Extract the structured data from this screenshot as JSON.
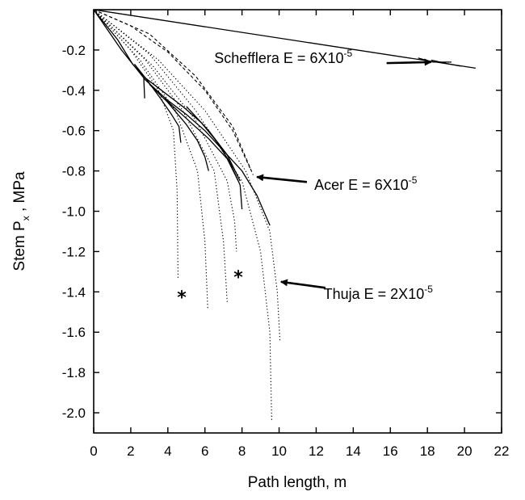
{
  "chart_data": {
    "type": "line",
    "title": "",
    "xlabel": "Path length, m",
    "ylabel_main": "Stem P",
    "ylabel_sub": "x",
    "ylabel_suffix": " , MPa",
    "xlim": [
      0,
      22
    ],
    "ylim": [
      -2.1,
      0
    ],
    "xticks": [
      0,
      2,
      4,
      6,
      8,
      10,
      12,
      14,
      16,
      18,
      20,
      22
    ],
    "yticks": [
      -0.2,
      -0.4,
      -0.6,
      -0.8,
      -1.0,
      -1.2,
      -1.4,
      -1.6,
      -1.8,
      -2.0
    ],
    "ytick_labels": [
      "-0.2",
      "-0.4",
      "-0.6",
      "-0.8",
      "-1.0",
      "-1.2",
      "-1.4",
      "-1.6",
      "-1.8",
      "-2.0"
    ],
    "grid": false,
    "series": [
      {
        "style": "solid",
        "x": [
          0,
          20.6
        ],
        "y": [
          0,
          -0.29
        ]
      },
      {
        "style": "solid",
        "x": [
          17.5,
          18.3,
          19.3
        ],
        "y": [
          -0.24,
          -0.26,
          -0.26
        ]
      },
      {
        "style": "solid",
        "x": [
          18.2,
          19.2,
          19.8
        ],
        "y": [
          -0.25,
          -0.27,
          -0.28
        ]
      },
      {
        "style": "solid",
        "x": [
          0,
          1.5,
          2.8,
          4.0,
          5.0,
          6.0,
          7.0,
          8.0,
          8.8,
          9.5
        ],
        "y": [
          0,
          -0.2,
          -0.35,
          -0.45,
          -0.52,
          -0.6,
          -0.7,
          -0.8,
          -0.92,
          -1.07
        ]
      },
      {
        "style": "solid",
        "x": [
          0,
          1.3,
          2.1,
          2.8,
          3.8,
          4.8,
          5.8,
          6.6,
          7.3,
          7.9,
          8.0
        ],
        "y": [
          0,
          -0.15,
          -0.27,
          -0.34,
          -0.41,
          -0.48,
          -0.56,
          -0.65,
          -0.75,
          -0.87,
          -0.99
        ]
      },
      {
        "style": "solid",
        "x": [
          2.7,
          2.75
        ],
        "y": [
          -0.34,
          -0.44
        ]
      },
      {
        "style": "solid",
        "x": [
          2.2,
          2.8,
          3.6,
          4.2,
          4.6,
          4.7
        ],
        "y": [
          -0.27,
          -0.34,
          -0.44,
          -0.52,
          -0.58,
          -0.66
        ]
      },
      {
        "style": "solid",
        "x": [
          3.0,
          4.0,
          5.0,
          5.6,
          6.0,
          6.2
        ],
        "y": [
          -0.37,
          -0.46,
          -0.57,
          -0.65,
          -0.73,
          -0.8
        ]
      },
      {
        "style": "solid",
        "x": [
          3.8,
          5.0,
          6.2,
          7.2,
          7.8
        ],
        "y": [
          -0.44,
          -0.54,
          -0.64,
          -0.74,
          -0.85
        ]
      },
      {
        "style": "solid",
        "x": [
          5.0,
          6.2,
          7.2,
          7.9
        ],
        "y": [
          -0.48,
          -0.6,
          -0.72,
          -0.85
        ]
      },
      {
        "style": "dashed",
        "x": [
          0,
          2.0,
          4.0,
          6.0,
          7.5,
          8.5
        ],
        "y": [
          0,
          -0.08,
          -0.21,
          -0.4,
          -0.6,
          -0.8
        ]
      },
      {
        "style": "dashed",
        "x": [
          0,
          3.0,
          5.5,
          7.5,
          8.6
        ],
        "y": [
          0,
          -0.12,
          -0.33,
          -0.58,
          -0.82
        ]
      },
      {
        "style": "dotted",
        "x": [
          0,
          2.0,
          3.5,
          4.3,
          4.5,
          4.55
        ],
        "y": [
          0,
          -0.2,
          -0.4,
          -0.6,
          -0.9,
          -1.33
        ]
      },
      {
        "style": "dotted",
        "x": [
          0,
          2.5,
          4.4,
          5.6,
          6.0,
          6.15
        ],
        "y": [
          0,
          -0.25,
          -0.5,
          -0.8,
          -1.15,
          -1.48
        ]
      },
      {
        "style": "dotted",
        "x": [
          0,
          2.8,
          4.8,
          6.5,
          7.0,
          7.2
        ],
        "y": [
          0,
          -0.25,
          -0.5,
          -0.8,
          -1.15,
          -1.45
        ]
      },
      {
        "style": "dotted",
        "x": [
          0,
          3.2,
          5.5,
          7.2,
          7.6,
          7.7
        ],
        "y": [
          0,
          -0.28,
          -0.55,
          -0.85,
          -1.05,
          -1.2
        ]
      },
      {
        "style": "dotted",
        "x": [
          0,
          3.0,
          5.5,
          8.0,
          9.0,
          9.5,
          9.6
        ],
        "y": [
          0,
          -0.22,
          -0.5,
          -0.85,
          -1.2,
          -1.6,
          -2.04
        ]
      },
      {
        "style": "dotted",
        "x": [
          0,
          3.5,
          6.0,
          8.2,
          9.5,
          9.9,
          10.05
        ],
        "y": [
          0,
          -0.25,
          -0.5,
          -0.8,
          -1.1,
          -1.4,
          -1.65
        ]
      }
    ],
    "annotations": [
      {
        "text": "Schefflera E = 6X10",
        "exp": "-5",
        "x": 6.5,
        "y": -0.24,
        "arrow_from": [
          15.8,
          -0.265
        ],
        "arrow_to": [
          18.2,
          -0.26
        ]
      },
      {
        "text": "Acer E = 6X10",
        "exp": "-5",
        "x": 11.9,
        "y": -0.87,
        "arrow_from": [
          11.5,
          -0.855
        ],
        "arrow_to": [
          8.8,
          -0.83
        ]
      },
      {
        "text": "Thuja E = 2X10",
        "exp": "-5",
        "x": 12.4,
        "y": -1.41,
        "arrow_from": [
          12.5,
          -1.38
        ],
        "arrow_to": [
          10.1,
          -1.35
        ]
      }
    ],
    "markers": [
      {
        "text": "*",
        "x": 4.75,
        "y": -1.4
      },
      {
        "text": "*",
        "x": 7.8,
        "y": -1.3
      }
    ]
  }
}
